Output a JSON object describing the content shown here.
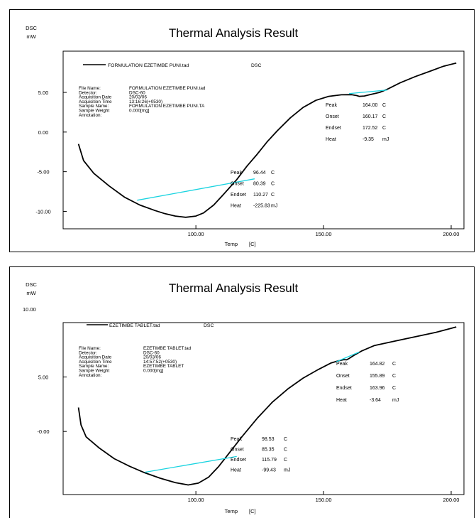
{
  "chart_data": [
    {
      "type": "line",
      "title": "Thermal Analysis Result",
      "ylabel_top": "DSC",
      "ylabel_unit": "mW",
      "xlabel": "Temp",
      "xunit": "[C]",
      "xlim": [
        48,
        205
      ],
      "ylim": [
        -12.2,
        10.2
      ],
      "x_ticks": [
        {
          "v": 100,
          "label": "100.00"
        },
        {
          "v": 150,
          "label": "150.00"
        },
        {
          "v": 200,
          "label": "200.00"
        }
      ],
      "y_ticks": [
        {
          "v": 5,
          "label": "5.00"
        },
        {
          "v": 0,
          "label": "0.00"
        },
        {
          "v": -5,
          "label": "-5.00"
        },
        {
          "v": -10,
          "label": "-10.00"
        }
      ],
      "legend": {
        "file": "FORMULATION EZETIMBE PUNI.tad",
        "kind": "DSC"
      },
      "info": [
        {
          "k": "File Name:",
          "v": "FORMULATION EZETIMBE PUNI.tad"
        },
        {
          "k": "Detector:",
          "v": "DSC-60"
        },
        {
          "k": "Acquisition Date",
          "v": "20/03/06"
        },
        {
          "k": "Acquisition Time",
          "v": "13:16:26(+0530)"
        },
        {
          "k": "Sample Name:",
          "v": "FORMULATION EZETIMBE PUNI.TA"
        },
        {
          "k": "Sample Weight",
          "v": "0.000[mg]"
        },
        {
          "k": "Annotation:",
          "v": ""
        }
      ],
      "peaks": [
        {
          "rows": [
            {
              "k": "Peak",
              "v": "96.44",
              "u": "C"
            },
            {
              "k": "Onset",
              "v": "80.39",
              "u": "C"
            },
            {
              "k": "Endset",
              "v": "110.27",
              "u": "C"
            },
            {
              "k": "Heat",
              "v": "-225.83",
              "u": "mJ"
            }
          ]
        },
        {
          "rows": [
            {
              "k": "Peak",
              "v": "164.00",
              "u": "C"
            },
            {
              "k": "Onset",
              "v": "160.17",
              "u": "C"
            },
            {
              "k": "Endset",
              "v": "172.52",
              "u": "C"
            },
            {
              "k": "Heat",
              "v": "-9.35",
              "u": "mJ"
            }
          ]
        }
      ],
      "series": [
        {
          "values": [
            [
              54,
              -1.5
            ],
            [
              56,
              -3.6
            ],
            [
              60,
              -5.2
            ],
            [
              66,
              -6.8
            ],
            [
              72,
              -8.2
            ],
            [
              78,
              -9.2
            ],
            [
              84,
              -9.9
            ],
            [
              88,
              -10.3
            ],
            [
              92,
              -10.6
            ],
            [
              96,
              -10.75
            ],
            [
              100,
              -10.6
            ],
            [
              103,
              -10.2
            ],
            [
              107,
              -9.2
            ],
            [
              111,
              -7.8
            ],
            [
              116,
              -6.0
            ],
            [
              120,
              -4.3
            ],
            [
              124,
              -2.8
            ],
            [
              128,
              -1.2
            ],
            [
              132,
              0.2
            ],
            [
              137,
              1.8
            ],
            [
              142,
              3.1
            ],
            [
              147,
              4.0
            ],
            [
              152,
              4.5
            ],
            [
              157,
              4.7
            ],
            [
              161,
              4.72
            ],
            [
              163,
              4.6
            ],
            [
              164,
              4.5
            ],
            [
              166,
              4.55
            ],
            [
              168,
              4.7
            ],
            [
              172,
              5.0
            ],
            [
              175,
              5.4
            ],
            [
              180,
              6.2
            ],
            [
              186,
              7.0
            ],
            [
              192,
              7.7
            ],
            [
              197,
              8.3
            ],
            [
              202,
              8.7
            ]
          ]
        }
      ],
      "baselines": [
        [
          [
            77,
            -8.6
          ],
          [
            123,
            -5.9
          ]
        ],
        [
          [
            160,
            4.85
          ],
          [
            175,
            5.3
          ]
        ]
      ]
    },
    {
      "type": "line",
      "title": "Thermal Analysis Result",
      "ylabel_top": "DSC",
      "ylabel_unit": "mW",
      "ylabel_top_value": "10.00",
      "xlabel": "Temp",
      "xunit": "[C]",
      "xlim": [
        48,
        205
      ],
      "ylim": [
        -5.8,
        10.0
      ],
      "x_ticks": [
        {
          "v": 100,
          "label": "100.00"
        },
        {
          "v": 150,
          "label": "150.00"
        },
        {
          "v": 200,
          "label": "200.00"
        }
      ],
      "y_ticks": [
        {
          "v": 5,
          "label": "5.00"
        },
        {
          "v": 0,
          "label": "-0.00"
        }
      ],
      "legend": {
        "file": "EZETIMBE TABLET.tad",
        "kind": "DSC"
      },
      "info": [
        {
          "k": "File Name:",
          "v": "EZETIMBE TABLET.tad"
        },
        {
          "k": "Detector:",
          "v": "DSC-60"
        },
        {
          "k": "Acquisition Date",
          "v": "20/03/06"
        },
        {
          "k": "Acquisition Time",
          "v": "14:57:52(+0530)"
        },
        {
          "k": "Sample Name:",
          "v": "EZETIMBE TABLET"
        },
        {
          "k": "Sample Weight",
          "v": "0.000[mg]"
        },
        {
          "k": "Annotation:",
          "v": ""
        }
      ],
      "peaks": [
        {
          "rows": [
            {
              "k": "Peak",
              "v": "98.53",
              "u": "C"
            },
            {
              "k": "Onset",
              "v": "85.35",
              "u": "C"
            },
            {
              "k": "Endset",
              "v": "115.79",
              "u": "C"
            },
            {
              "k": "Heat",
              "v": "-99.43",
              "u": "mJ"
            }
          ]
        },
        {
          "rows": [
            {
              "k": "Peak",
              "v": "164.82",
              "u": "C"
            },
            {
              "k": "Onset",
              "v": "155.89",
              "u": "C"
            },
            {
              "k": "Endset",
              "v": "163.96",
              "u": "C"
            },
            {
              "k": "Heat",
              "v": "-3.64",
              "u": "mJ"
            }
          ]
        }
      ],
      "series": [
        {
          "values": [
            [
              54,
              2.2
            ],
            [
              55,
              0.6
            ],
            [
              57,
              -0.5
            ],
            [
              62,
              -1.5
            ],
            [
              68,
              -2.5
            ],
            [
              74,
              -3.2
            ],
            [
              80,
              -3.8
            ],
            [
              86,
              -4.3
            ],
            [
              92,
              -4.7
            ],
            [
              97,
              -4.92
            ],
            [
              101,
              -4.75
            ],
            [
              105,
              -4.2
            ],
            [
              109,
              -3.2
            ],
            [
              113,
              -2.0
            ],
            [
              118,
              -0.5
            ],
            [
              124,
              1.2
            ],
            [
              130,
              2.7
            ],
            [
              136,
              3.9
            ],
            [
              142,
              4.9
            ],
            [
              148,
              5.7
            ],
            [
              153,
              6.3
            ],
            [
              156,
              6.5
            ],
            [
              158,
              6.6
            ],
            [
              159,
              6.58
            ],
            [
              160,
              6.7
            ],
            [
              162,
              7.0
            ],
            [
              165,
              7.4
            ],
            [
              170,
              7.9
            ],
            [
              178,
              8.3
            ],
            [
              186,
              8.7
            ],
            [
              194,
              9.1
            ],
            [
              202,
              9.6
            ]
          ]
        }
      ],
      "baselines": [
        [
          [
            80,
            -3.75
          ],
          [
            116,
            -2.3
          ]
        ],
        [
          [
            155,
            6.4
          ],
          [
            164,
            7.3
          ]
        ]
      ]
    }
  ]
}
